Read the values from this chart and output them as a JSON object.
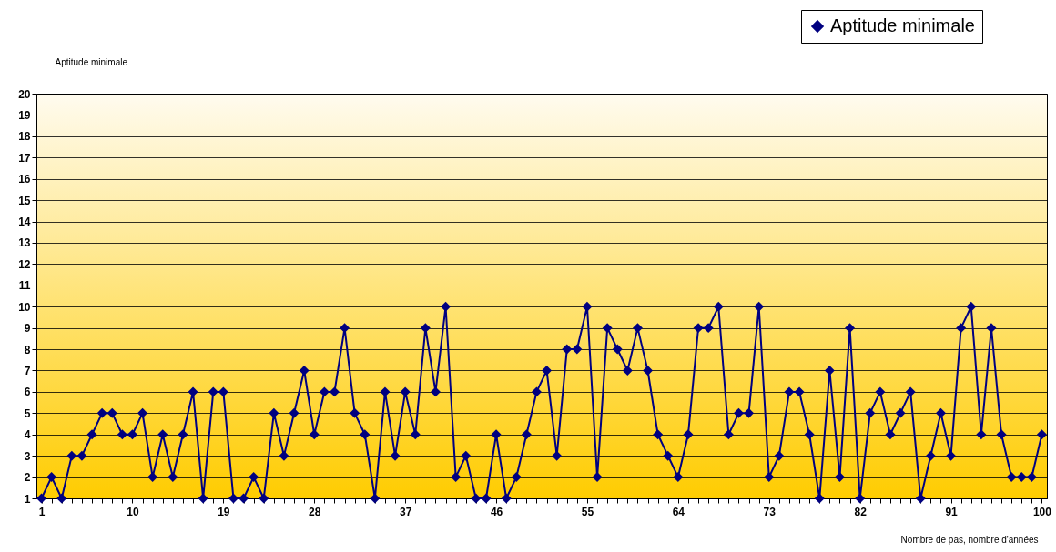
{
  "chart_data": {
    "type": "line",
    "xlabel": "Nombre de pas, nombre d'années",
    "ylabel": "Aptitude minimale",
    "categories": [
      "1",
      null,
      null,
      null,
      null,
      null,
      null,
      null,
      null,
      "10",
      null,
      null,
      null,
      null,
      null,
      null,
      null,
      null,
      "19",
      null,
      null,
      null,
      null,
      null,
      null,
      null,
      null,
      "28",
      null,
      null,
      null,
      null,
      null,
      null,
      null,
      null,
      "37",
      null,
      null,
      null,
      null,
      null,
      null,
      null,
      null,
      "46",
      null,
      null,
      null,
      null,
      null,
      null,
      null,
      null,
      "55",
      null,
      null,
      null,
      null,
      null,
      null,
      null,
      null,
      "64",
      null,
      null,
      null,
      null,
      null,
      null,
      null,
      null,
      "73",
      null,
      null,
      null,
      null,
      null,
      null,
      null,
      null,
      "82",
      null,
      null,
      null,
      null,
      null,
      null,
      null,
      null,
      "91",
      null,
      null,
      null,
      null,
      null,
      null,
      null,
      null,
      "100"
    ],
    "series": [
      {
        "name": "Aptitude minimale",
        "color": "#000080",
        "values": [
          1,
          2,
          1,
          3,
          3,
          4,
          5,
          5,
          4,
          4,
          5,
          2,
          4,
          2,
          4,
          6,
          1,
          6,
          6,
          1,
          1,
          2,
          1,
          5,
          3,
          5,
          7,
          4,
          6,
          6,
          9,
          5,
          4,
          1,
          6,
          3,
          6,
          4,
          9,
          6,
          10,
          2,
          3,
          1,
          1,
          4,
          1,
          2,
          4,
          6,
          7,
          3,
          8,
          8,
          10,
          2,
          9,
          8,
          7,
          9,
          7,
          4,
          3,
          2,
          4,
          9,
          9,
          10,
          4,
          5,
          5,
          10,
          2,
          3,
          6,
          6,
          4,
          1,
          7,
          2,
          9,
          1,
          5,
          6,
          4,
          5,
          6,
          1,
          3,
          5,
          3,
          9,
          10,
          4,
          9,
          4,
          2,
          2,
          2,
          4
        ]
      }
    ],
    "ylim": [
      1,
      20
    ],
    "yticks": [
      1,
      2,
      3,
      4,
      5,
      6,
      7,
      8,
      9,
      10,
      11,
      12,
      13,
      14,
      15,
      16,
      17,
      18,
      19,
      20
    ],
    "grid": "y",
    "legend": "top right",
    "marker": "diamond",
    "line_style": "solid"
  }
}
